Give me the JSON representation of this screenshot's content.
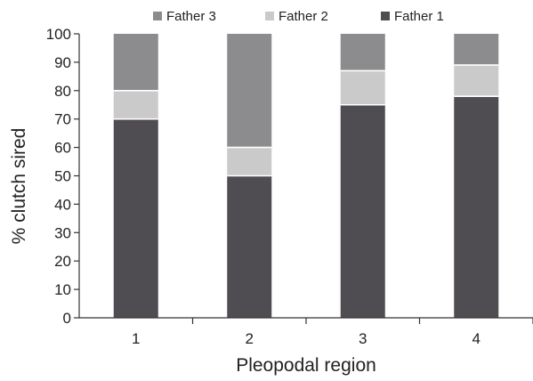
{
  "chart_data": {
    "type": "bar",
    "stacked": true,
    "title": "",
    "xlabel": "Pleopodal region",
    "ylabel": "% clutch sired",
    "ylim": [
      0,
      100
    ],
    "yticks": [
      "0",
      "10",
      "20",
      "30",
      "40",
      "50",
      "60",
      "70",
      "80",
      "90",
      "100"
    ],
    "categories": [
      "1",
      "2",
      "3",
      "4"
    ],
    "series": [
      {
        "name": "Father 1",
        "color": "#4f4d51",
        "values": [
          70,
          50,
          75,
          78
        ]
      },
      {
        "name": "Father 2",
        "color": "#cacaca",
        "values": [
          10,
          10,
          12,
          11
        ]
      },
      {
        "name": "Father 3",
        "color": "#8c8b8e",
        "values": [
          20,
          40,
          13,
          11
        ]
      }
    ],
    "legend": {
      "placement": "top",
      "order": [
        "Father 3",
        "Father 2",
        "Father 1"
      ]
    },
    "grid": false
  }
}
